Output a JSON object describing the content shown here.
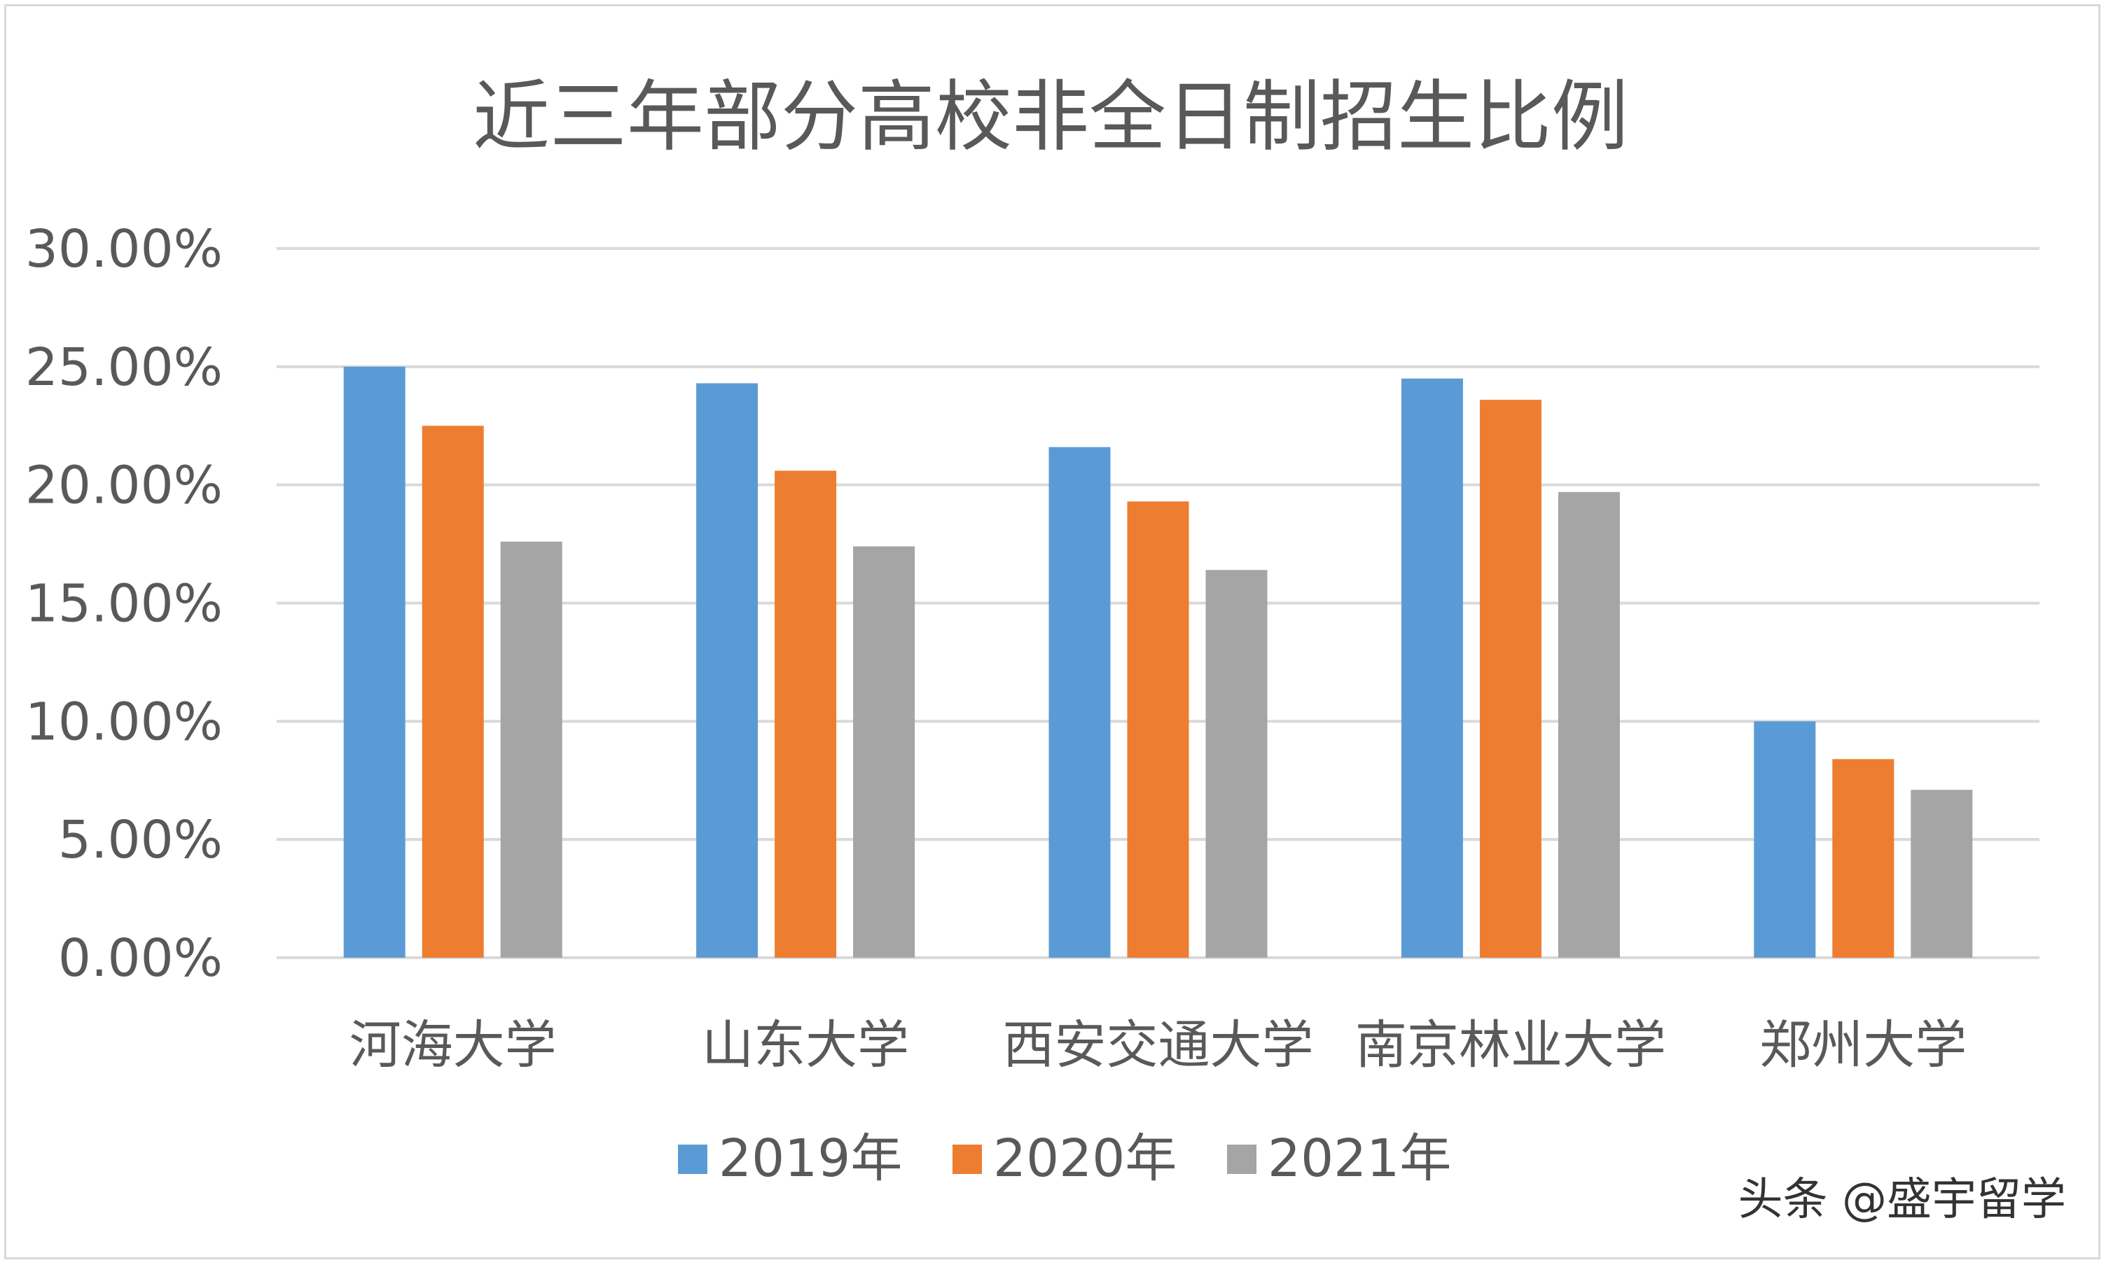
{
  "chart_data": {
    "type": "bar",
    "title": "近三年部分高校非全日制招生比例",
    "xlabel": "",
    "ylabel": "",
    "categories": [
      "河海大学",
      "山东大学",
      "西安交通大学",
      "南京林业大学",
      "郑州大学"
    ],
    "series": [
      {
        "name": "2019年",
        "color": "#5b9bd5",
        "values": [
          25.0,
          24.3,
          21.6,
          24.5,
          10.0
        ]
      },
      {
        "name": "2020年",
        "color": "#ed7d31",
        "values": [
          22.5,
          20.6,
          19.3,
          23.6,
          8.4
        ]
      },
      {
        "name": "2021年",
        "color": "#a5a5a5",
        "values": [
          17.6,
          17.4,
          16.4,
          19.7,
          7.1
        ]
      }
    ],
    "ylim": [
      0,
      30
    ],
    "yticks": [
      {
        "value": 0,
        "label": "0.00%"
      },
      {
        "value": 5,
        "label": "5.00%"
      },
      {
        "value": 10,
        "label": "10.00%"
      },
      {
        "value": 15,
        "label": "15.00%"
      },
      {
        "value": 20,
        "label": "20.00%"
      },
      {
        "value": 25,
        "label": "25.00%"
      },
      {
        "value": 30,
        "label": "30.00%"
      }
    ],
    "grid": true,
    "legend": "bottom-center",
    "watermark": "头条 @盛宇留学",
    "colors": {
      "grid": "#d9d9d9",
      "text": "#595959"
    }
  }
}
